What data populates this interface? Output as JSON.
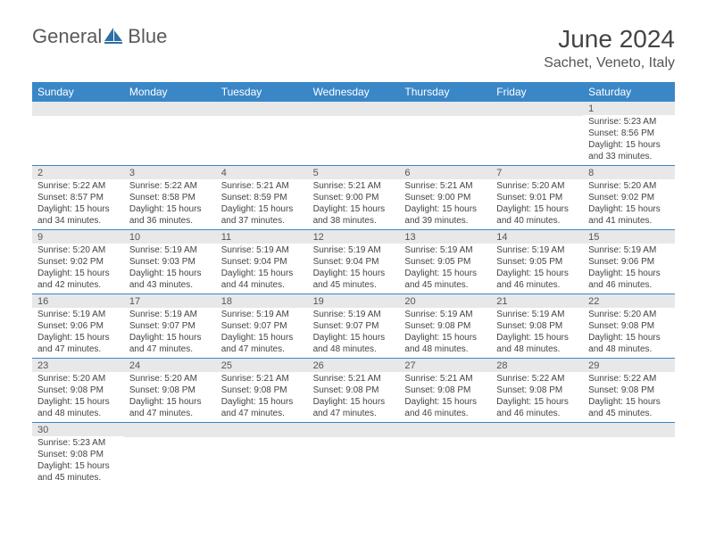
{
  "logo": {
    "text_a": "General",
    "text_b": "Blue"
  },
  "title": "June 2024",
  "location": "Sachet, Veneto, Italy",
  "colors": {
    "header_bg": "#3a87c7",
    "header_text": "#ffffff",
    "row_divider": "#3a87c7",
    "daynum_bg": "#e8e8e8",
    "body_text": "#444444",
    "logo_gray": "#5a5a5a",
    "logo_blue": "#2f6fa8"
  },
  "day_names": [
    "Sunday",
    "Monday",
    "Tuesday",
    "Wednesday",
    "Thursday",
    "Friday",
    "Saturday"
  ],
  "weeks": [
    [
      null,
      null,
      null,
      null,
      null,
      null,
      {
        "n": "1",
        "sr": "5:23 AM",
        "ss": "8:56 PM",
        "dl": "15 hours and 33 minutes."
      }
    ],
    [
      {
        "n": "2",
        "sr": "5:22 AM",
        "ss": "8:57 PM",
        "dl": "15 hours and 34 minutes."
      },
      {
        "n": "3",
        "sr": "5:22 AM",
        "ss": "8:58 PM",
        "dl": "15 hours and 36 minutes."
      },
      {
        "n": "4",
        "sr": "5:21 AM",
        "ss": "8:59 PM",
        "dl": "15 hours and 37 minutes."
      },
      {
        "n": "5",
        "sr": "5:21 AM",
        "ss": "9:00 PM",
        "dl": "15 hours and 38 minutes."
      },
      {
        "n": "6",
        "sr": "5:21 AM",
        "ss": "9:00 PM",
        "dl": "15 hours and 39 minutes."
      },
      {
        "n": "7",
        "sr": "5:20 AM",
        "ss": "9:01 PM",
        "dl": "15 hours and 40 minutes."
      },
      {
        "n": "8",
        "sr": "5:20 AM",
        "ss": "9:02 PM",
        "dl": "15 hours and 41 minutes."
      }
    ],
    [
      {
        "n": "9",
        "sr": "5:20 AM",
        "ss": "9:02 PM",
        "dl": "15 hours and 42 minutes."
      },
      {
        "n": "10",
        "sr": "5:19 AM",
        "ss": "9:03 PM",
        "dl": "15 hours and 43 minutes."
      },
      {
        "n": "11",
        "sr": "5:19 AM",
        "ss": "9:04 PM",
        "dl": "15 hours and 44 minutes."
      },
      {
        "n": "12",
        "sr": "5:19 AM",
        "ss": "9:04 PM",
        "dl": "15 hours and 45 minutes."
      },
      {
        "n": "13",
        "sr": "5:19 AM",
        "ss": "9:05 PM",
        "dl": "15 hours and 45 minutes."
      },
      {
        "n": "14",
        "sr": "5:19 AM",
        "ss": "9:05 PM",
        "dl": "15 hours and 46 minutes."
      },
      {
        "n": "15",
        "sr": "5:19 AM",
        "ss": "9:06 PM",
        "dl": "15 hours and 46 minutes."
      }
    ],
    [
      {
        "n": "16",
        "sr": "5:19 AM",
        "ss": "9:06 PM",
        "dl": "15 hours and 47 minutes."
      },
      {
        "n": "17",
        "sr": "5:19 AM",
        "ss": "9:07 PM",
        "dl": "15 hours and 47 minutes."
      },
      {
        "n": "18",
        "sr": "5:19 AM",
        "ss": "9:07 PM",
        "dl": "15 hours and 47 minutes."
      },
      {
        "n": "19",
        "sr": "5:19 AM",
        "ss": "9:07 PM",
        "dl": "15 hours and 48 minutes."
      },
      {
        "n": "20",
        "sr": "5:19 AM",
        "ss": "9:08 PM",
        "dl": "15 hours and 48 minutes."
      },
      {
        "n": "21",
        "sr": "5:19 AM",
        "ss": "9:08 PM",
        "dl": "15 hours and 48 minutes."
      },
      {
        "n": "22",
        "sr": "5:20 AM",
        "ss": "9:08 PM",
        "dl": "15 hours and 48 minutes."
      }
    ],
    [
      {
        "n": "23",
        "sr": "5:20 AM",
        "ss": "9:08 PM",
        "dl": "15 hours and 48 minutes."
      },
      {
        "n": "24",
        "sr": "5:20 AM",
        "ss": "9:08 PM",
        "dl": "15 hours and 47 minutes."
      },
      {
        "n": "25",
        "sr": "5:21 AM",
        "ss": "9:08 PM",
        "dl": "15 hours and 47 minutes."
      },
      {
        "n": "26",
        "sr": "5:21 AM",
        "ss": "9:08 PM",
        "dl": "15 hours and 47 minutes."
      },
      {
        "n": "27",
        "sr": "5:21 AM",
        "ss": "9:08 PM",
        "dl": "15 hours and 46 minutes."
      },
      {
        "n": "28",
        "sr": "5:22 AM",
        "ss": "9:08 PM",
        "dl": "15 hours and 46 minutes."
      },
      {
        "n": "29",
        "sr": "5:22 AM",
        "ss": "9:08 PM",
        "dl": "15 hours and 45 minutes."
      }
    ],
    [
      {
        "n": "30",
        "sr": "5:23 AM",
        "ss": "9:08 PM",
        "dl": "15 hours and 45 minutes."
      },
      null,
      null,
      null,
      null,
      null,
      null
    ]
  ],
  "labels": {
    "sunrise": "Sunrise:",
    "sunset": "Sunset:",
    "daylight": "Daylight:"
  }
}
